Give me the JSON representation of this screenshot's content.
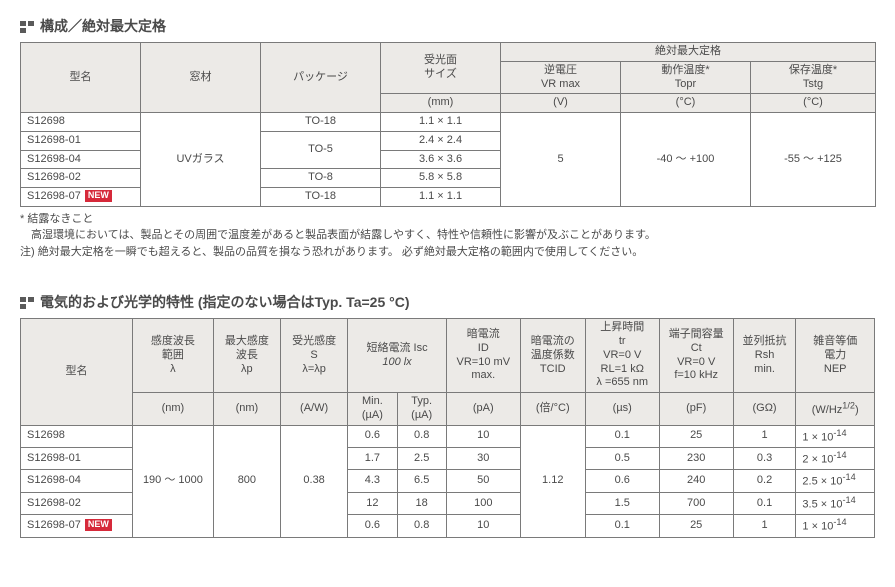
{
  "section1": {
    "title": "構成／絶対最大定格",
    "marker_color": "#5a5a5a",
    "columns_top": [
      "型名",
      "窓材",
      "パッケージ",
      "受光面\nサイズ",
      "絶対最大定格"
    ],
    "abs_max_group": "絶対最大定格",
    "abs_max_sub": [
      {
        "l1": "逆電圧",
        "l2": "VR max",
        "unit": "(V)"
      },
      {
        "l1": "動作温度*",
        "l2": "Topr",
        "unit": "(°C)"
      },
      {
        "l1": "保存温度*",
        "l2": "Tstg",
        "unit": "(°C)"
      }
    ],
    "size_unit": "(mm)",
    "window_material": "UVガラス",
    "vr_max": "5",
    "topr": "-40 ～ +100",
    "tstg": "-55 ～ +125",
    "rows": [
      {
        "model": "S12698",
        "pkg": "TO-18",
        "size": "1.1 × 1.1",
        "new": false
      },
      {
        "model": "S12698-01",
        "pkg": "TO-5",
        "size": "2.4 × 2.4",
        "new": false
      },
      {
        "model": "S12698-04",
        "pkg": "TO-5",
        "size": "3.6 × 3.6",
        "new": false
      },
      {
        "model": "S12698-02",
        "pkg": "TO-8",
        "size": "5.8 × 5.8",
        "new": false
      },
      {
        "model": "S12698-07",
        "pkg": "TO-18",
        "size": "1.1 × 1.1",
        "new": true
      }
    ],
    "new_label": "NEW",
    "note_star": "* 結露なきこと",
    "note_text1": "高湿環境においては、製品とその周囲で温度差があると製品表面が結露しやすく、特性や信頼性に影響が及ぶことがあります。",
    "note_text2": "注) 絶対最大定格を一瞬でも超えると、製品の品質を損なう恐れがあります。 必ず絶対最大定格の範囲内で使用してください。"
  },
  "section2": {
    "title": "電気的および光学的特性 (指定のない場合はTyp. Ta=25 °C)",
    "headers": {
      "model": "型名",
      "lambda_range": {
        "l1": "感度波長",
        "l2": "範囲",
        "l3": "λ",
        "unit": "(nm)"
      },
      "lambda_p": {
        "l1": "最大感度",
        "l2": "波長",
        "l3": "λp",
        "unit": "(nm)"
      },
      "s": {
        "l1": "受光感度",
        "l2": "S",
        "l3": "λ=λp",
        "unit": "(A/W)"
      },
      "isc_group": {
        "l1": "短絡電流 Isc",
        "l2": "100 lx"
      },
      "isc_min": {
        "l1": "Min.",
        "unit": "(µA)"
      },
      "isc_typ": {
        "l1": "Typ.",
        "unit": "(µA)"
      },
      "id": {
        "l1": "暗電流",
        "l2": "ID",
        "l3": "VR=10 mV",
        "l4": "max.",
        "unit": "(pA)"
      },
      "tcid": {
        "l1": "暗電流の",
        "l2": "温度係数",
        "l3": "TCID",
        "unit": "(倍/°C)"
      },
      "tr": {
        "l1": "上昇時間",
        "l2": "tr",
        "l3": "VR=0 V",
        "l4": "RL=1 kΩ",
        "l5": "λ =655 nm",
        "unit": "(µs)"
      },
      "ct": {
        "l1": "端子間容量",
        "l2": "Ct",
        "l3": "VR=0 V",
        "l4": "f=10 kHz",
        "unit": "(pF)"
      },
      "rsh": {
        "l1": "並列抵抗",
        "l2": "Rsh",
        "l3": "min.",
        "unit": "(GΩ)"
      },
      "nep": {
        "l1": "雑音等価",
        "l2": "電力",
        "l3": "NEP",
        "unit": "(W/Hz<sup>1/2</sup>)"
      }
    },
    "shared": {
      "lambda_range": "190 ～ 1000",
      "lambda_p": "800",
      "s": "0.38",
      "tcid": "1.12"
    },
    "rows": [
      {
        "model": "S12698",
        "isc_min": "0.6",
        "isc_typ": "0.8",
        "id": "10",
        "tr": "0.1",
        "ct": "25",
        "rsh": "1",
        "nep": "1 × 10<sup>-14</sup>",
        "new": false
      },
      {
        "model": "S12698-01",
        "isc_min": "1.7",
        "isc_typ": "2.5",
        "id": "30",
        "tr": "0.5",
        "ct": "230",
        "rsh": "0.3",
        "nep": "2 × 10<sup>-14</sup>",
        "new": false
      },
      {
        "model": "S12698-04",
        "isc_min": "4.3",
        "isc_typ": "6.5",
        "id": "50",
        "tr": "0.6",
        "ct": "240",
        "rsh": "0.2",
        "nep": "2.5 × 10<sup>-14</sup>",
        "new": false
      },
      {
        "model": "S12698-02",
        "isc_min": "12",
        "isc_typ": "18",
        "id": "100",
        "tr": "1.5",
        "ct": "700",
        "rsh": "0.1",
        "nep": "3.5 × 10<sup>-14</sup>",
        "new": false
      },
      {
        "model": "S12698-07",
        "isc_min": "0.6",
        "isc_typ": "0.8",
        "id": "10",
        "tr": "0.1",
        "ct": "25",
        "rsh": "1",
        "nep": "1 × 10<sup>-14</sup>",
        "new": true
      }
    ]
  }
}
